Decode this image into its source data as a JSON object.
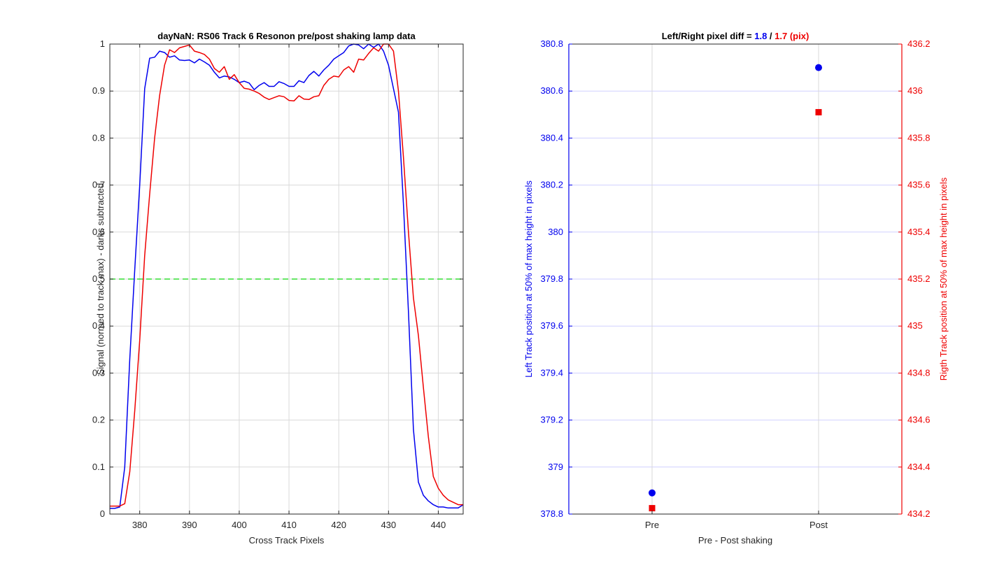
{
  "chart_data": [
    {
      "type": "line",
      "title": "dayNaN: RS06  Track 6 Resonon pre/post shaking lamp data",
      "xlabel": "Cross Track Pixels",
      "ylabel": "Signal (normed to track max) - darks subtracted",
      "xlim": [
        374,
        445
      ],
      "ylim": [
        0,
        1
      ],
      "xticks": [
        380,
        390,
        400,
        410,
        420,
        430,
        440
      ],
      "xtick_labels": [
        "380",
        "390",
        "400",
        "410",
        "420",
        "430",
        "440"
      ],
      "yticks": [
        0,
        0.1,
        0.2,
        0.3,
        0.4,
        0.5,
        0.6,
        0.7,
        0.8,
        0.9,
        1
      ],
      "ytick_labels": [
        "0",
        "0.1",
        "0.2",
        "0.3",
        "0.4",
        "0.5",
        "0.6",
        "0.7",
        "0.8",
        "0.9",
        "1"
      ],
      "grid": true,
      "reference_line": {
        "y": 0.5,
        "color": "#33dd33",
        "style": "dashed"
      },
      "series": [
        {
          "color": "#0000ee",
          "x": [
            374,
            375,
            376,
            377,
            378,
            379,
            380,
            381,
            382,
            383,
            384,
            385,
            386,
            387,
            388,
            389,
            390,
            391,
            392,
            393,
            394,
            395,
            396,
            397,
            398,
            399,
            400,
            401,
            402,
            403,
            404,
            405,
            406,
            407,
            408,
            409,
            410,
            411,
            412,
            413,
            414,
            415,
            416,
            417,
            418,
            419,
            420,
            421,
            422,
            423,
            424,
            425,
            426,
            427,
            428,
            429,
            430,
            431,
            432,
            433,
            434,
            435,
            436,
            437,
            438,
            439,
            440,
            441,
            442,
            443,
            444,
            445
          ],
          "y": [
            0.012,
            0.012,
            0.015,
            0.1,
            0.33,
            0.52,
            0.7,
            0.905,
            0.97,
            0.972,
            0.985,
            0.982,
            0.972,
            0.975,
            0.966,
            0.965,
            0.966,
            0.96,
            0.968,
            0.962,
            0.955,
            0.94,
            0.928,
            0.932,
            0.93,
            0.925,
            0.918,
            0.921,
            0.917,
            0.903,
            0.912,
            0.918,
            0.91,
            0.91,
            0.92,
            0.916,
            0.91,
            0.91,
            0.922,
            0.918,
            0.933,
            0.942,
            0.932,
            0.945,
            0.955,
            0.968,
            0.975,
            0.982,
            0.996,
            1.0,
            0.998,
            0.99,
            1.0,
            0.993,
            1.0,
            0.985,
            0.955,
            0.905,
            0.855,
            0.66,
            0.43,
            0.18,
            0.068,
            0.04,
            0.028,
            0.02,
            0.015,
            0.015,
            0.013,
            0.013,
            0.013,
            0.02
          ]
        },
        {
          "color": "#ee0000",
          "x": [
            374,
            375,
            376,
            377,
            378,
            379,
            380,
            381,
            382,
            383,
            384,
            385,
            386,
            387,
            388,
            389,
            390,
            391,
            392,
            393,
            394,
            395,
            396,
            397,
            398,
            399,
            400,
            401,
            402,
            403,
            404,
            405,
            406,
            407,
            408,
            409,
            410,
            411,
            412,
            413,
            414,
            415,
            416,
            417,
            418,
            419,
            420,
            421,
            422,
            423,
            424,
            425,
            426,
            427,
            428,
            429,
            430,
            431,
            432,
            433,
            434,
            435,
            436,
            437,
            438,
            439,
            440,
            441,
            442,
            443,
            444,
            445
          ],
          "y": [
            0.017,
            0.017,
            0.017,
            0.022,
            0.09,
            0.22,
            0.37,
            0.55,
            0.68,
            0.8,
            0.89,
            0.955,
            0.988,
            0.982,
            0.992,
            0.995,
            0.998,
            0.985,
            0.982,
            0.978,
            0.968,
            0.948,
            0.94,
            0.952,
            0.925,
            0.935,
            0.918,
            0.906,
            0.904,
            0.9,
            0.895,
            0.887,
            0.882,
            0.886,
            0.89,
            0.888,
            0.88,
            0.879,
            0.89,
            0.883,
            0.882,
            0.888,
            0.89,
            0.912,
            0.925,
            0.932,
            0.93,
            0.945,
            0.952,
            0.94,
            0.968,
            0.966,
            0.98,
            0.992,
            0.985,
            1.0,
            1.0,
            0.985,
            0.9,
            0.76,
            0.6,
            0.46,
            0.38,
            0.27,
            0.165,
            0.08,
            0.055,
            0.04,
            0.03,
            0.025,
            0.02,
            0.02
          ]
        }
      ]
    },
    {
      "type": "scatter",
      "title_parts": [
        {
          "text": "Left/Right pixel diff = ",
          "color": "#000000"
        },
        {
          "text": "1.8",
          "color": "#0000ee"
        },
        {
          "text": " / ",
          "color": "#000000"
        },
        {
          "text": "1.7 (pix)",
          "color": "#ee0000"
        }
      ],
      "xlabel": "Pre - Post shaking",
      "categories": [
        "Pre",
        "Post"
      ],
      "xlim": [
        0.5,
        2.5
      ],
      "ylabel_left": "Left Track position at 50% of max height in pixels",
      "ylabel_right": "Rigth Track position at 50% of max height in pixels",
      "ylim_left": [
        378.8,
        380.8
      ],
      "ylim_right": [
        434.2,
        436.2
      ],
      "yticks_left": [
        "378.8",
        "379",
        "379.2",
        "379.4",
        "379.6",
        "379.8",
        "380",
        "380.2",
        "380.4",
        "380.6",
        "380.8"
      ],
      "yticks_right": [
        "434.2",
        "434.4",
        "434.6",
        "434.8",
        "435",
        "435.2",
        "435.4",
        "435.6",
        "435.8",
        "436",
        "436.2"
      ],
      "left_color": "#0000ee",
      "right_color": "#ee0000",
      "series": [
        {
          "axis": "left",
          "marker": "circle",
          "color": "#0000ee",
          "x": [
            1,
            2
          ],
          "y": [
            378.89,
            380.7
          ]
        },
        {
          "axis": "right",
          "marker": "square",
          "color": "#ee0000",
          "x": [
            1,
            2
          ],
          "y": [
            434.225,
            435.91
          ]
        }
      ]
    }
  ]
}
